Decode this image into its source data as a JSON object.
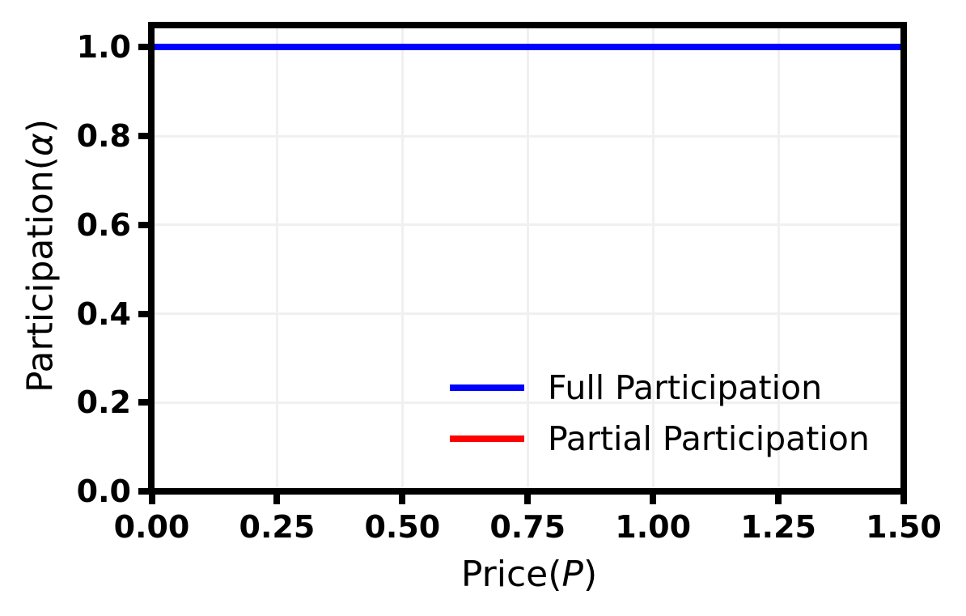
{
  "figure": {
    "background_color": "#ffffff",
    "axis_color": "#000000"
  },
  "chart_data": {
    "type": "line",
    "title": "",
    "xlabel": "Price(P)",
    "xlabel_parts": {
      "prefix": "Price(",
      "variable": "P",
      "suffix": ")"
    },
    "ylabel": "Participation(α)",
    "ylabel_parts": {
      "prefix": "Participation(",
      "variable": "α",
      "suffix": ")"
    },
    "xlim": [
      0.0,
      1.5
    ],
    "ylim": [
      0.0,
      1.05
    ],
    "x_ticks": [
      {
        "value": 0.0,
        "label": "0.00"
      },
      {
        "value": 0.25,
        "label": "0.25"
      },
      {
        "value": 0.5,
        "label": "0.50"
      },
      {
        "value": 0.75,
        "label": "0.75"
      },
      {
        "value": 1.0,
        "label": "1.00"
      },
      {
        "value": 1.25,
        "label": "1.25"
      },
      {
        "value": 1.5,
        "label": "1.50"
      }
    ],
    "y_ticks": [
      {
        "value": 0.0,
        "label": "0.0"
      },
      {
        "value": 0.2,
        "label": "0.2"
      },
      {
        "value": 0.4,
        "label": "0.4"
      },
      {
        "value": 0.6,
        "label": "0.6"
      },
      {
        "value": 0.8,
        "label": "0.8"
      },
      {
        "value": 1.0,
        "label": "1.0"
      }
    ],
    "grid": {
      "show": true,
      "color": "#f0f0f0"
    },
    "legend": {
      "frame": false,
      "location": "lower right inside axes"
    },
    "series": [
      {
        "name": "Full Participation",
        "color": "#0000ff",
        "style": "solid",
        "x": [
          0.0,
          1.5
        ],
        "y": [
          1.0,
          1.0
        ],
        "visible_in_plot": true
      },
      {
        "name": "Partial Participation",
        "color": "#ff0000",
        "style": "solid",
        "x": [],
        "y": [],
        "visible_in_plot": false
      }
    ]
  }
}
